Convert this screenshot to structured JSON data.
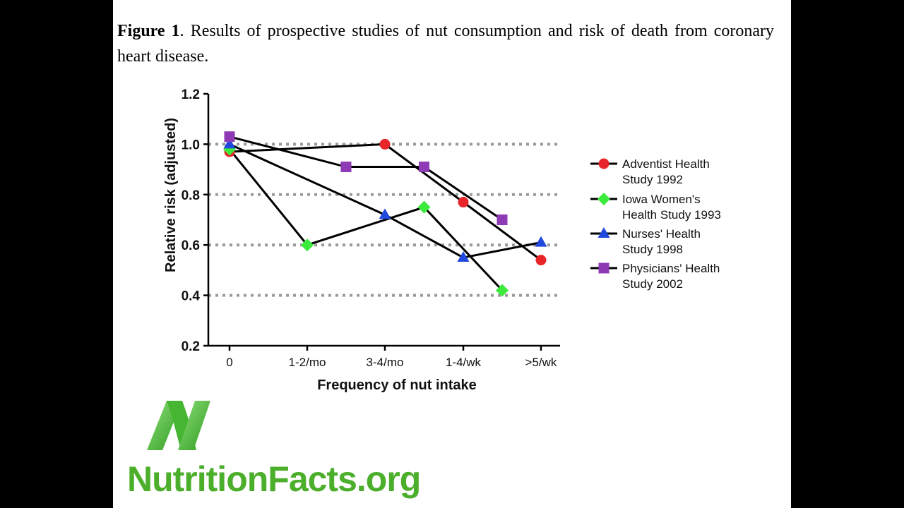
{
  "caption": {
    "label": "Figure 1",
    "text": ". Results of prospective studies of nut consumption and risk of death from coronary heart disease."
  },
  "brand": {
    "name": "NutritionFacts.org",
    "logo_icon": "nutritionfacts-n-logo"
  },
  "chart_data": {
    "type": "line",
    "xlabel": "Frequency of nut intake",
    "ylabel": "Relative risk (adjusted)",
    "ylim": [
      0.2,
      1.2
    ],
    "yticks": [
      0.2,
      0.4,
      0.6,
      0.8,
      1.0,
      1.2
    ],
    "ytick_labels": [
      "0.2",
      "0.4",
      "0.6",
      "0.8",
      "1.0",
      "1.2"
    ],
    "reference_lines": [
      0.4,
      0.6,
      0.8,
      1.0
    ],
    "categories": [
      "0",
      "1-2/mo",
      "3-4/mo",
      "1-4/wk",
      ">5/wk"
    ],
    "legend_position": "right",
    "series": [
      {
        "name": "Adventist Health Study 1992",
        "name_lines": [
          "Adventist Health",
          "Study 1992"
        ],
        "marker": "circle",
        "color": "#e8262a",
        "points": [
          {
            "x": 0,
            "y": 0.97
          },
          {
            "x": 2,
            "y": 1.0
          },
          {
            "x": 3,
            "y": 0.77
          },
          {
            "x": 4,
            "y": 0.54
          }
        ]
      },
      {
        "name": "Iowa Women's Health Study 1993",
        "name_lines": [
          "Iowa Women's",
          "Health Study 1993"
        ],
        "marker": "diamond",
        "color": "#3bea3b",
        "points": [
          {
            "x": 0,
            "y": 0.98
          },
          {
            "x": 1,
            "y": 0.6
          },
          {
            "x": 2.5,
            "y": 0.75
          },
          {
            "x": 3.5,
            "y": 0.42
          }
        ]
      },
      {
        "name": "Nurses' Health Study 1998",
        "name_lines": [
          "Nurses' Health",
          "Study 1998"
        ],
        "marker": "triangle",
        "color": "#2149dd",
        "points": [
          {
            "x": 0,
            "y": 1.0
          },
          {
            "x": 2,
            "y": 0.72
          },
          {
            "x": 3,
            "y": 0.55
          },
          {
            "x": 4,
            "y": 0.61
          }
        ]
      },
      {
        "name": "Physicians' Health Study 2002",
        "name_lines": [
          "Physicians' Health",
          "Study 2002"
        ],
        "marker": "square",
        "color": "#8d3ab4",
        "points": [
          {
            "x": 0,
            "y": 1.03
          },
          {
            "x": 1.5,
            "y": 0.91
          },
          {
            "x": 2.5,
            "y": 0.91
          },
          {
            "x": 3.5,
            "y": 0.7
          }
        ]
      }
    ]
  }
}
